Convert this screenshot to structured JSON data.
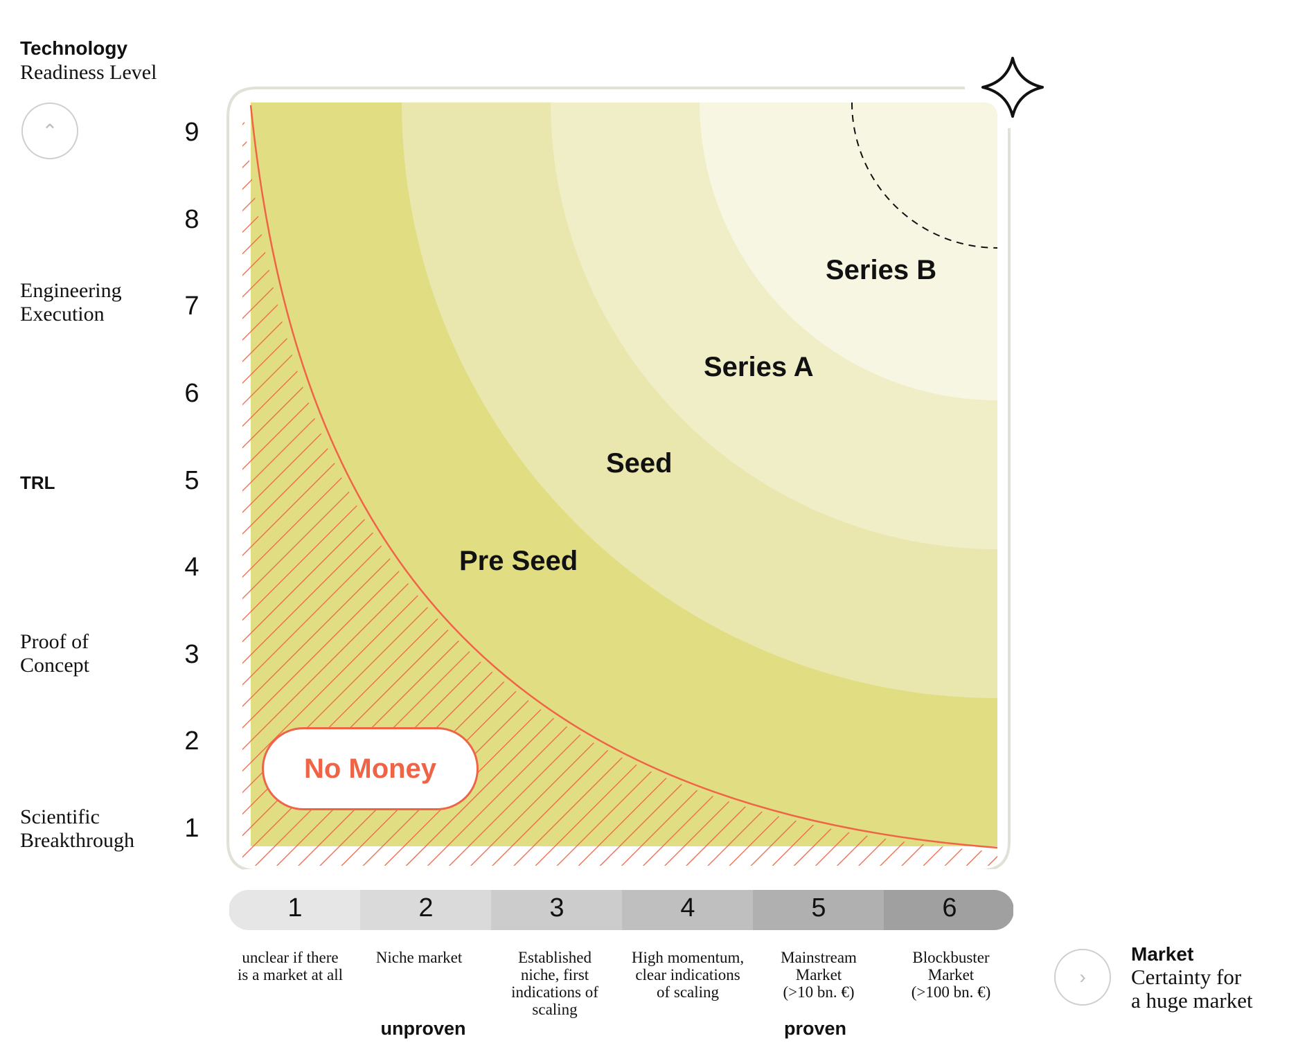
{
  "y_axis": {
    "title_bold": "Technology",
    "title_sub": "Readiness Level",
    "button_icon": "chevron-up-icon",
    "abbr": "TRL",
    "levels": [
      "1",
      "2",
      "3",
      "4",
      "5",
      "6",
      "7",
      "8",
      "9"
    ],
    "annotations": {
      "engineering_line1": "Engineering",
      "engineering_line2": "Execution",
      "proof_line1": "Proof of",
      "proof_line2": "Concept",
      "science_line1": "Scientific",
      "science_line2": "Breakthrough"
    }
  },
  "x_axis": {
    "levels": [
      "1",
      "2",
      "3",
      "4",
      "5",
      "6"
    ],
    "level_colors": [
      "#e6e6e6",
      "#dadada",
      "#cccccc",
      "#bfbfbf",
      "#b0b0b0",
      "#a0a0a0"
    ],
    "descriptions": [
      [
        "unclear if there",
        "is a market at all"
      ],
      [
        "Niche market"
      ],
      [
        "Established",
        "niche, first",
        "indications of",
        "scaling"
      ],
      [
        "High momentum,",
        "clear indications",
        "of scaling"
      ],
      [
        "Mainstream",
        "Market",
        "(>10 bn. €)"
      ],
      [
        "Blockbuster",
        "Market",
        "(>100 bn. €)"
      ]
    ],
    "unproven": "unproven",
    "proven": "proven",
    "title_bold": "Market",
    "title_sub_line1": "Certainty for",
    "title_sub_line2": "a huge market",
    "button_icon": "chevron-right-icon"
  },
  "zones": {
    "no_money": "No Money",
    "pre_seed": "Pre Seed",
    "seed": "Seed",
    "series_a": "Series A",
    "series_b": "Series B"
  },
  "colors": {
    "pre_seed": "#e1dd82",
    "seed": "#e9e7ae",
    "series_a": "#f0eec7",
    "series_b": "#f7f6e3",
    "no_money": "#ef6447",
    "frame": "#e2e1d8",
    "star": "#111111"
  },
  "decor": {
    "star_icon": "sparkle-star-icon"
  }
}
